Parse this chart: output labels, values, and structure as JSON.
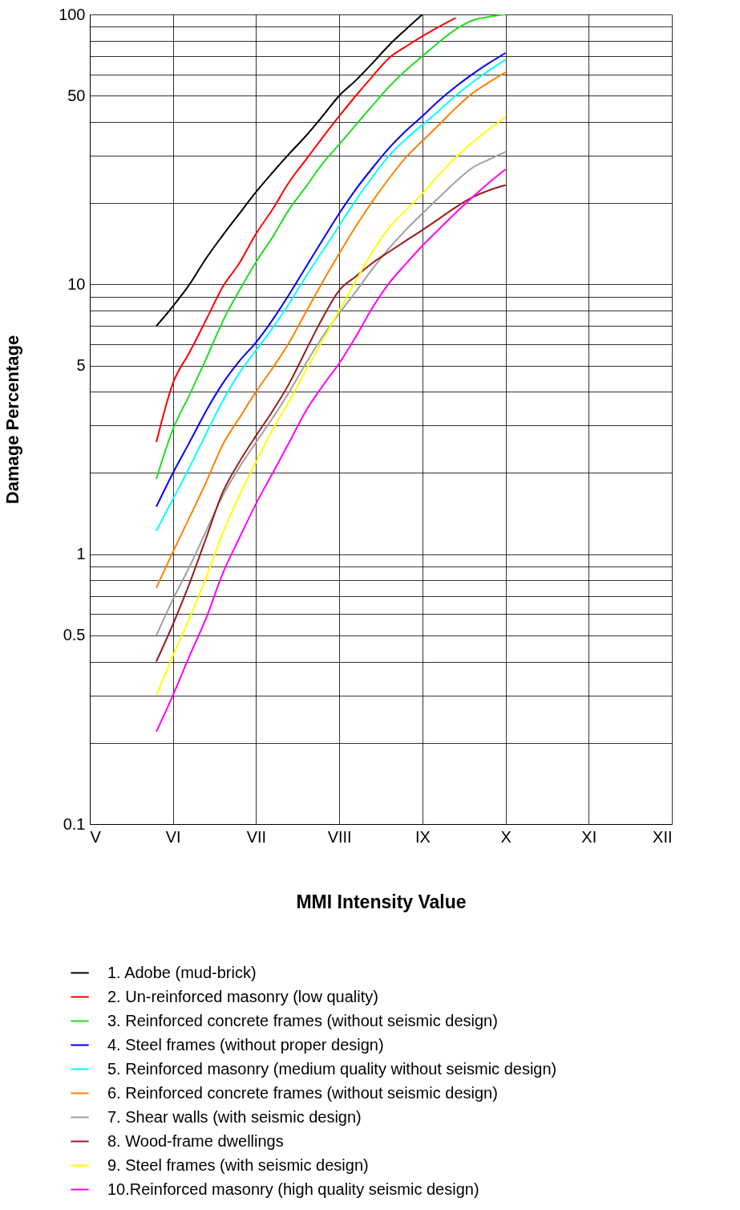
{
  "chart_data": {
    "type": "line",
    "xlabel": "MMI Intensity Value",
    "ylabel": "Damage Percentage",
    "log": "y",
    "grid": true,
    "legend": "bottom",
    "marker": "none",
    "line_style": "solid",
    "categories": [
      "V",
      null,
      null,
      null,
      null,
      "VI",
      null,
      null,
      null,
      null,
      "VII",
      null,
      null,
      null,
      null,
      "VIII",
      null,
      null,
      null,
      null,
      "IX",
      null,
      null,
      null,
      null,
      "X",
      null,
      null,
      null,
      null,
      "XI",
      null,
      null,
      null,
      null,
      "XII"
    ],
    "ylim": [
      0.1,
      100
    ],
    "yticks": [
      0.1,
      {
        "value": 0.2,
        "label": null
      },
      {
        "value": 0.3,
        "label": null
      },
      {
        "value": 0.4,
        "label": null
      },
      0.5,
      {
        "value": 0.6,
        "label": null
      },
      {
        "value": 0.7,
        "label": null
      },
      {
        "value": 0.8,
        "label": null
      },
      {
        "value": 0.9,
        "label": null
      },
      1,
      {
        "value": 2,
        "label": null
      },
      {
        "value": 3,
        "label": null
      },
      {
        "value": 4,
        "label": null
      },
      5,
      {
        "value": 6,
        "label": null
      },
      {
        "value": 7,
        "label": null
      },
      {
        "value": 8,
        "label": null
      },
      {
        "value": 9,
        "label": null
      },
      10,
      {
        "value": 20,
        "label": null
      },
      {
        "value": 30,
        "label": null
      },
      {
        "value": 40,
        "label": null
      },
      50,
      {
        "value": 60,
        "label": null
      },
      {
        "value": 70,
        "label": null
      },
      {
        "value": 80,
        "label": null
      },
      {
        "value": 90,
        "label": null
      },
      100
    ],
    "series": [
      {
        "name": "1.  Adobe (mud-brick)",
        "color": "#000000",
        "values": [
          null,
          null,
          null,
          null,
          7.0,
          8.3,
          10,
          12.5,
          15.2,
          18.3,
          22,
          26,
          30.5,
          35.5,
          42,
          50,
          57,
          66,
          77,
          88,
          100,
          null,
          null,
          null,
          null,
          null,
          null,
          null,
          null,
          null,
          null,
          null,
          null,
          null,
          null,
          null
        ]
      },
      {
        "name": "2.  Un-reinforced masonry (low quality)",
        "color": "#ff0000",
        "values": [
          null,
          null,
          null,
          null,
          2.6,
          4.3,
          5.6,
          7.4,
          9.8,
          12,
          15.4,
          19,
          24,
          29,
          35,
          42,
          50,
          59,
          69,
          76,
          83,
          90,
          97,
          null,
          null,
          null,
          null,
          null,
          null,
          null,
          null,
          null,
          null,
          null,
          null,
          null
        ]
      },
      {
        "name": "3.  Reinforced concrete frames (without seismic design)",
        "color": "#22dd22",
        "values": [
          null,
          null,
          null,
          null,
          1.9,
          2.9,
          3.9,
          5.3,
          7.3,
          9.5,
          12.1,
          15,
          19,
          23,
          28,
          33,
          39,
          46,
          54,
          62,
          70,
          79,
          88,
          95,
          98,
          100,
          null,
          null,
          null,
          null,
          null,
          null,
          null,
          null,
          null,
          null
        ]
      },
      {
        "name": "4.  Steel frames (without proper design)",
        "color": "#0000ff",
        "values": [
          null,
          null,
          null,
          null,
          1.5,
          2.0,
          2.6,
          3.4,
          4.3,
          5.2,
          6.1,
          7.4,
          9.2,
          11.6,
          14.6,
          18.3,
          22.5,
          27,
          32,
          37,
          42,
          48,
          54,
          60,
          66,
          72,
          null,
          null,
          null,
          null,
          null,
          null,
          null,
          null,
          null,
          null
        ]
      },
      {
        "name": "5.  Reinforced masonry (medium quality without seismic design)",
        "color": "#00ffff",
        "values": [
          null,
          null,
          null,
          null,
          1.22,
          1.6,
          2.1,
          2.8,
          3.7,
          4.7,
          5.7,
          6.9,
          8.5,
          10.7,
          13.3,
          16.5,
          20.5,
          25,
          30,
          34.5,
          39,
          44,
          50,
          56,
          62,
          68,
          null,
          null,
          null,
          null,
          null,
          null,
          null,
          null,
          null,
          null
        ]
      },
      {
        "name": "6.  Reinforced concrete frames (without seismic design)",
        "color": "#ff8000",
        "values": [
          null,
          null,
          null,
          null,
          0.75,
          1.02,
          1.37,
          1.85,
          2.55,
          3.2,
          4.0,
          4.9,
          6.1,
          7.9,
          10.2,
          13,
          16.4,
          20.3,
          24.7,
          29.5,
          34,
          39,
          45,
          51,
          56,
          61,
          null,
          null,
          null,
          null,
          null,
          null,
          null,
          null,
          null,
          null
        ]
      },
      {
        "name": "7.  Shear walls (with seismic design)",
        "color": "#a0a0a0",
        "values": [
          null,
          null,
          null,
          null,
          0.5,
          0.68,
          0.9,
          1.22,
          1.65,
          2.1,
          2.6,
          3.2,
          4.0,
          5.1,
          6.4,
          7.8,
          9.4,
          11.4,
          13.6,
          15.9,
          18.3,
          21,
          24,
          27,
          29,
          31,
          null,
          null,
          null,
          null,
          null,
          null,
          null,
          null,
          null,
          null
        ]
      },
      {
        "name": "8.  Wood-frame dwellings",
        "color": "#9b1c1c",
        "values": [
          null,
          null,
          null,
          null,
          0.4,
          0.55,
          0.78,
          1.15,
          1.7,
          2.2,
          2.75,
          3.4,
          4.3,
          5.7,
          7.5,
          9.5,
          10.7,
          12,
          13.2,
          14.5,
          15.9,
          17.5,
          19.3,
          21,
          22.3,
          23.3,
          null,
          null,
          null,
          null,
          null,
          null,
          null,
          null,
          null,
          null
        ]
      },
      {
        "name": "9.  Steel frames (with seismic design)",
        "color": "#ffff00",
        "values": [
          null,
          null,
          null,
          null,
          0.3,
          0.42,
          0.58,
          0.82,
          1.2,
          1.65,
          2.2,
          2.9,
          3.7,
          4.8,
          6.2,
          8.0,
          10.3,
          13.2,
          16.2,
          18.8,
          21.7,
          25.5,
          29.5,
          33.5,
          37.5,
          41.7,
          null,
          null,
          null,
          null,
          null,
          null,
          null,
          null,
          null,
          null
        ]
      },
      {
        "name": "10.Reinforced masonry (high quality seismic design)",
        "color": "#ff00ff",
        "values": [
          null,
          null,
          null,
          null,
          0.22,
          0.3,
          0.42,
          0.58,
          0.85,
          1.15,
          1.54,
          2.0,
          2.6,
          3.4,
          4.2,
          5.1,
          6.4,
          8.2,
          10.1,
          11.9,
          13.9,
          16,
          18.4,
          21,
          23.8,
          26.7,
          null,
          null,
          null,
          null,
          null,
          null,
          null,
          null,
          null,
          null
        ]
      }
    ]
  }
}
